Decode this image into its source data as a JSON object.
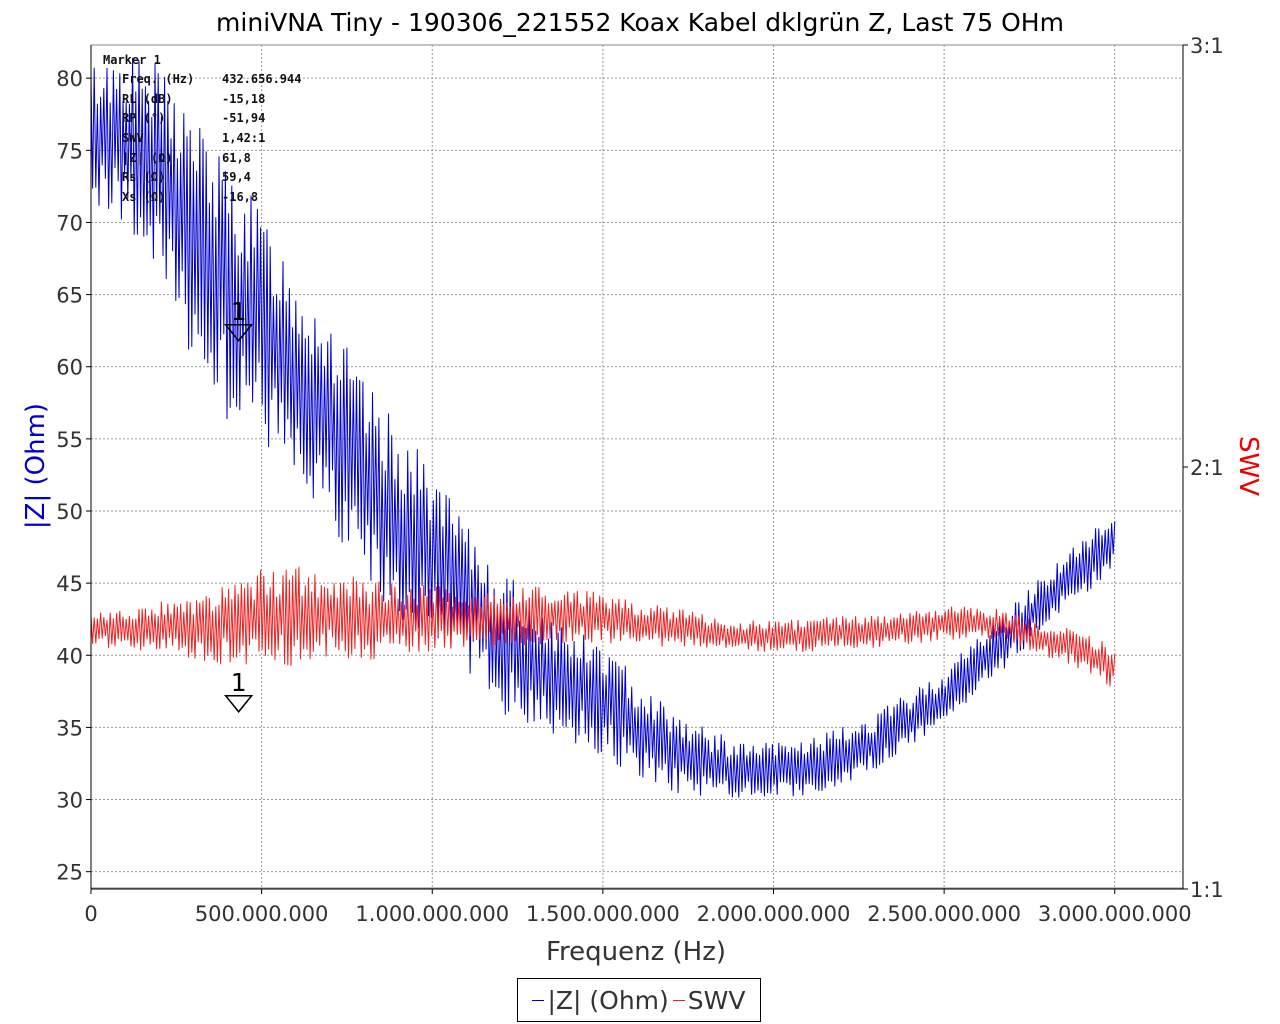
{
  "chart_data": {
    "type": "line",
    "title": "miniVNA Tiny - 190306_221552 Koax Kabel dklgrün Z, Last 75 OHm",
    "xlabel": "Frequenz (Hz)",
    "ylabel_left": "|Z| (Ohm)",
    "ylabel_right": "SWV",
    "x_ticks": [
      "0",
      "500.000.000",
      "1.000.000.000",
      "1.500.000.000",
      "2.000.000.000",
      "2.500.000.000",
      "3.000.000.000"
    ],
    "x_tick_values": [
      0,
      500000000,
      1000000000,
      1500000000,
      2000000000,
      2500000000,
      3000000000
    ],
    "xlim": [
      0,
      3200000000
    ],
    "y_left_ticks": [
      "25",
      "30",
      "35",
      "40",
      "45",
      "50",
      "55",
      "60",
      "65",
      "70",
      "75",
      "80"
    ],
    "y_left_tick_values": [
      25,
      30,
      35,
      40,
      45,
      50,
      55,
      60,
      65,
      70,
      75,
      80
    ],
    "ylim_left": [
      23.8,
      82.3
    ],
    "y_right_ticks": [
      "1:1",
      "2:1",
      "3:1"
    ],
    "y_right_tick_values": [
      1,
      2,
      3
    ],
    "ylim_right": [
      1,
      3
    ],
    "grid": true,
    "legend_placement": "bottom-center",
    "series": [
      {
        "name": "|Z| (Ohm)",
        "axis": "left",
        "color": "#0000cc",
        "x": [
          0,
          100000000,
          200000000,
          300000000,
          400000000,
          500000000,
          600000000,
          700000000,
          800000000,
          900000000,
          1000000000,
          1100000000,
          1200000000,
          1300000000,
          1400000000,
          1500000000,
          1600000000,
          1700000000,
          1800000000,
          1900000000,
          2000000000,
          2100000000,
          2200000000,
          2300000000,
          2400000000,
          2500000000,
          2600000000,
          2700000000,
          2800000000,
          2900000000,
          3000000000
        ],
        "y": [
          76,
          76,
          73,
          69,
          65,
          63,
          59,
          56,
          52,
          49,
          47,
          44,
          41,
          39.5,
          38,
          37,
          35,
          33.5,
          32.5,
          32,
          32,
          32.3,
          33,
          34,
          35.5,
          37,
          39.5,
          41.5,
          44,
          46,
          48
        ],
        "swing": [
          5,
          6,
          8,
          9,
          9,
          8,
          8,
          8,
          7,
          7,
          6,
          5,
          5,
          4.5,
          4,
          4,
          3.5,
          3,
          2.5,
          2,
          2,
          2,
          2,
          2,
          2,
          2,
          2,
          2,
          2,
          2,
          2
        ]
      },
      {
        "name": "SWV",
        "axis": "right",
        "color": "#ee2222",
        "x": [
          0,
          100000000,
          200000000,
          300000000,
          400000000,
          500000000,
          600000000,
          700000000,
          800000000,
          900000000,
          1000000000,
          1100000000,
          1200000000,
          1300000000,
          1400000000,
          1500000000,
          1600000000,
          1700000000,
          1800000000,
          1900000000,
          2000000000,
          2100000000,
          2200000000,
          2300000000,
          2400000000,
          2500000000,
          2600000000,
          2700000000,
          2800000000,
          2900000000,
          3000000000
        ],
        "y": [
          1.62,
          1.61,
          1.62,
          1.62,
          1.63,
          1.64,
          1.65,
          1.65,
          1.64,
          1.64,
          1.64,
          1.64,
          1.64,
          1.65,
          1.65,
          1.64,
          1.63,
          1.62,
          1.61,
          1.6,
          1.6,
          1.6,
          1.61,
          1.61,
          1.62,
          1.63,
          1.63,
          1.62,
          1.59,
          1.57,
          1.52
        ],
        "swing": [
          0.04,
          0.05,
          0.06,
          0.08,
          0.1,
          0.12,
          0.12,
          0.1,
          0.1,
          0.09,
          0.08,
          0.07,
          0.07,
          0.07,
          0.07,
          0.06,
          0.05,
          0.05,
          0.04,
          0.04,
          0.04,
          0.04,
          0.04,
          0.04,
          0.04,
          0.04,
          0.04,
          0.04,
          0.04,
          0.05,
          0.05
        ]
      }
    ],
    "markers": [
      {
        "label": "1",
        "x": 432656944,
        "value": 61.8,
        "axis": "left"
      },
      {
        "label": "1",
        "x": 432656944,
        "value": 1.42,
        "axis": "right"
      }
    ]
  },
  "marker_box": {
    "title": "Marker 1",
    "rows": [
      {
        "label": "Freq. (Hz)",
        "value": "432.656.944"
      },
      {
        "label": "RL (dB)",
        "value": "-15,18"
      },
      {
        "label": "RP (°)",
        "value": "-51,94"
      },
      {
        "label": "SWV",
        "value": "1,42:1"
      },
      {
        "label": "|Z| (Ω)",
        "value": "61,8"
      },
      {
        "label": "Rs (Ω)",
        "value": "59,4"
      },
      {
        "label": "Xs (Ω)",
        "value": "-16,8"
      }
    ]
  },
  "colors": {
    "z_series": "#0000cc",
    "swv_series": "#ee2222",
    "grid": "#999999",
    "axis": "#000000"
  }
}
